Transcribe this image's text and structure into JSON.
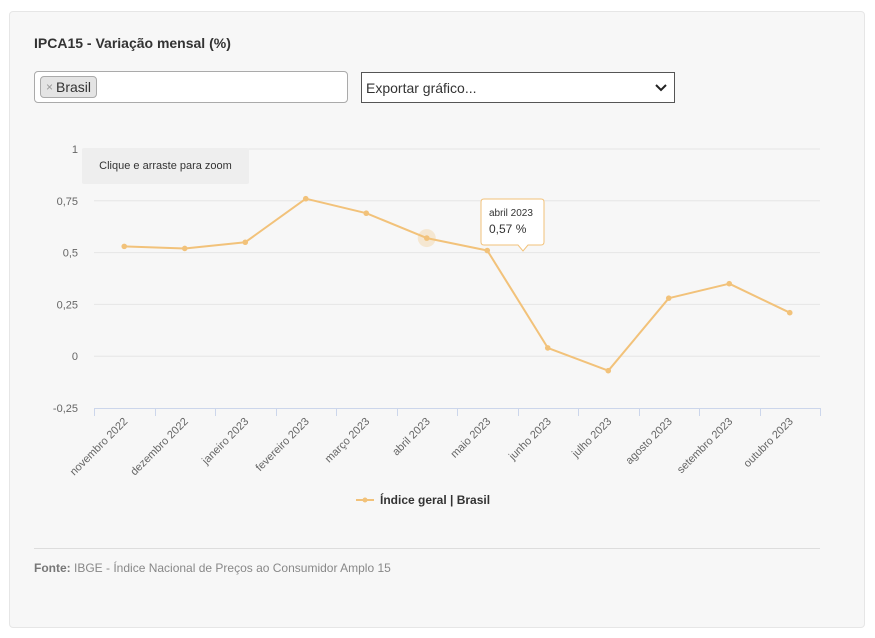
{
  "title": "IPCA15 - Variação mensal (%)",
  "filter": {
    "chip_label": "Brasil",
    "remove_symbol": "×"
  },
  "export": {
    "label": "Exportar gráfico..."
  },
  "zoom_hint": "Clique e arraste para zoom",
  "tooltip": {
    "date": "abril 2023",
    "value": "0,57 %"
  },
  "source": {
    "prefix": "Fonte:",
    "text": "IBGE - Índice Nacional de Preços ao Consumidor Amplo 15"
  },
  "colors": {
    "series": "#f2c27a",
    "grid": "#e6e6e6",
    "axis": "#ccd6eb"
  },
  "chart_data": {
    "type": "line",
    "categories": [
      "novembro 2022",
      "dezembro 2022",
      "janeiro 2023",
      "fevereiro 2023",
      "março 2023",
      "abril 2023",
      "maio 2023",
      "junho 2023",
      "julho 2023",
      "agosto 2023",
      "setembro 2023",
      "outubro 2023"
    ],
    "series": [
      {
        "name": "Índice geral | Brasil",
        "values": [
          0.53,
          0.52,
          0.55,
          0.76,
          0.69,
          0.57,
          0.51,
          0.04,
          -0.07,
          0.28,
          0.35,
          0.21
        ]
      }
    ],
    "yticks": [
      1,
      0.75,
      0.5,
      0.25,
      0,
      -0.25
    ],
    "ytick_labels": [
      "1",
      "0,75",
      "0,5",
      "0,25",
      "0",
      "-0,25"
    ],
    "ylim": [
      -0.25,
      1
    ],
    "highlight_index": 5,
    "grid": true,
    "legend": "bottom-center"
  }
}
